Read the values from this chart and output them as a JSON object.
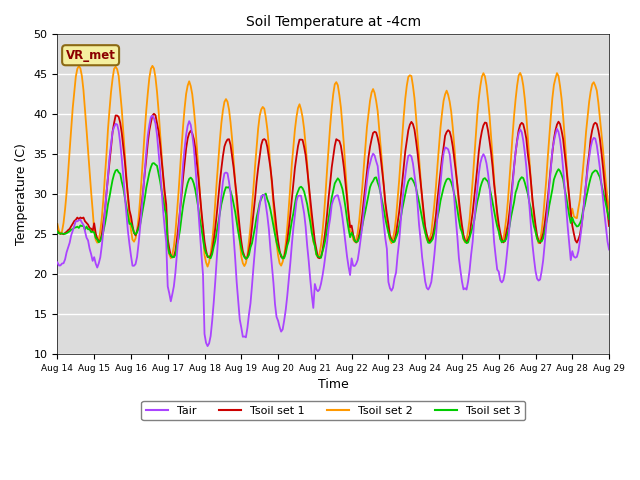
{
  "title": "Soil Temperature at -4cm",
  "xlabel": "Time",
  "ylabel": "Temperature (C)",
  "ylim": [
    10,
    50
  ],
  "xlim": [
    0,
    360
  ],
  "background_color": "#dcdcdc",
  "annotation_text": "VR_met",
  "annotation_bg": "#f5f0a0",
  "annotation_border": "#8B6914",
  "series_colors": {
    "Tair": "#aa44ff",
    "Tsoil1": "#cc0000",
    "Tsoil2": "#ff9900",
    "Tsoil3": "#00cc00"
  },
  "xtick_labels": [
    "Aug 14",
    "Aug 15",
    "Aug 16",
    "Aug 17",
    "Aug 18",
    "Aug 19",
    "Aug 20",
    "Aug 21",
    "Aug 22",
    "Aug 23",
    "Aug 24",
    "Aug 25",
    "Aug 26",
    "Aug 27",
    "Aug 28",
    "Aug 29"
  ],
  "xtick_positions": [
    0,
    24,
    48,
    72,
    96,
    120,
    144,
    168,
    192,
    216,
    240,
    264,
    288,
    312,
    336,
    360
  ],
  "ytick_positions": [
    10,
    15,
    20,
    25,
    30,
    35,
    40,
    45,
    50
  ],
  "n_points": 361,
  "tair_day_highs": [
    27,
    39,
    40,
    39,
    33,
    30,
    30,
    30,
    35,
    35,
    36,
    35,
    38,
    38,
    37
  ],
  "tair_day_lows": [
    21,
    21,
    21,
    17,
    11,
    12,
    13,
    18,
    21,
    18,
    18,
    18,
    19,
    19,
    22
  ],
  "tsoil1_day_highs": [
    27,
    40,
    40,
    38,
    37,
    37,
    37,
    37,
    38,
    39,
    38,
    39,
    39,
    39,
    39
  ],
  "tsoil1_day_lows": [
    25,
    24,
    25,
    22,
    22,
    22,
    22,
    22,
    24,
    24,
    24,
    24,
    24,
    24,
    24
  ],
  "tsoil2_day_highs": [
    46,
    46,
    46,
    44,
    42,
    41,
    41,
    44,
    43,
    45,
    43,
    45,
    45,
    45,
    44
  ],
  "tsoil2_day_lows": [
    25,
    24,
    24,
    22,
    21,
    21,
    21,
    22,
    24,
    24,
    24,
    24,
    24,
    24,
    27
  ],
  "tsoil3_day_highs": [
    26,
    33,
    34,
    32,
    31,
    30,
    31,
    32,
    32,
    32,
    32,
    32,
    32,
    33,
    33
  ],
  "tsoil3_day_lows": [
    25,
    24,
    25,
    22,
    22,
    22,
    22,
    22,
    24,
    24,
    24,
    24,
    24,
    24,
    26
  ]
}
